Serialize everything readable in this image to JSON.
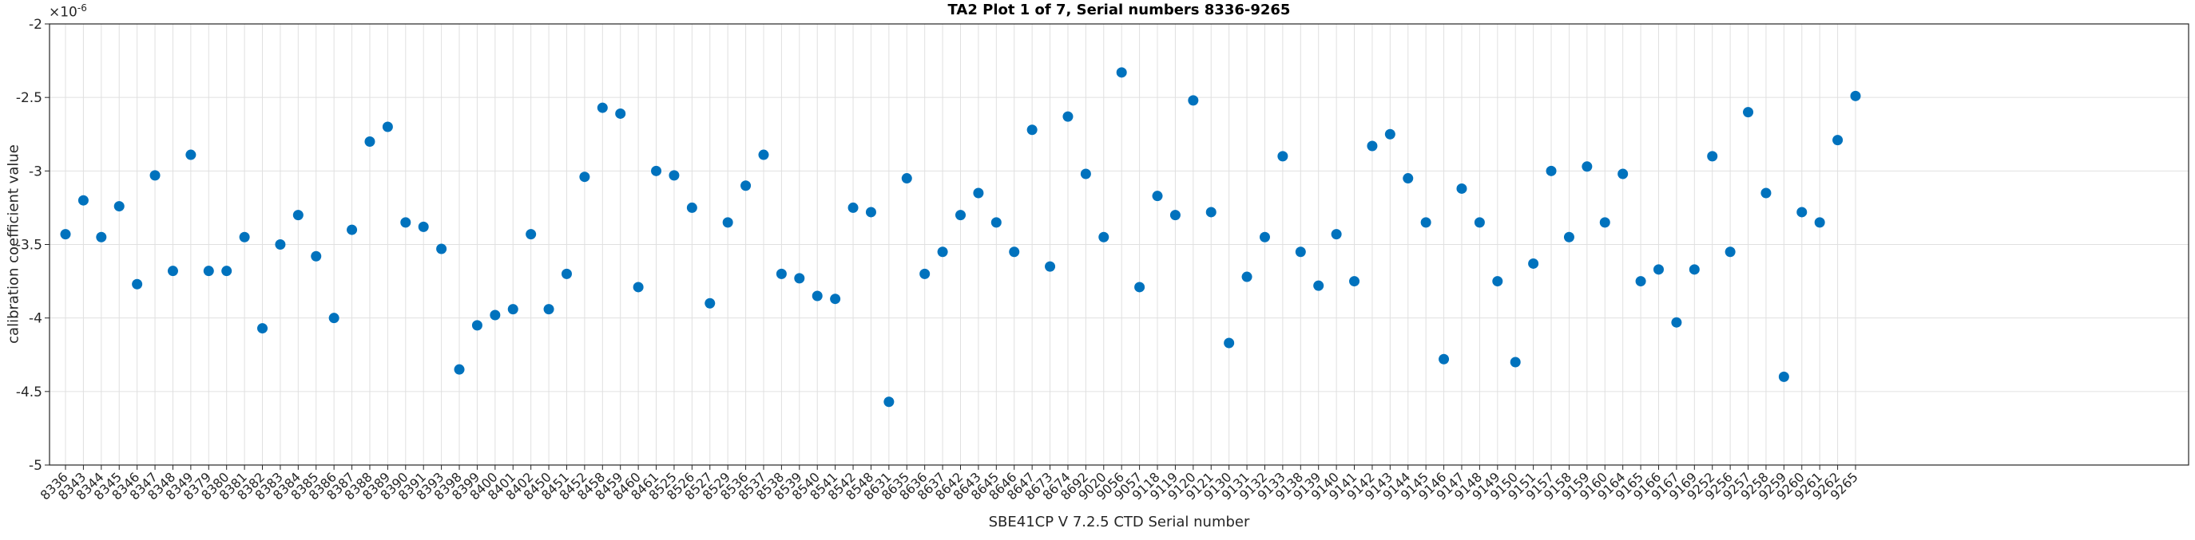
{
  "chart_data": {
    "type": "scatter",
    "title": "TA2 Plot 1 of 7, Serial numbers 8336-9265",
    "xlabel": "SBE41CP V 7.2.5 CTD Serial number",
    "ylabel": "calibration coefficient value",
    "y_exponent": {
      "prefix": "×10",
      "exp": "-6"
    },
    "ylim": [
      -5,
      -2
    ],
    "yticks": [
      -2,
      -2.5,
      -3,
      -3.5,
      -4,
      -4.5,
      -5
    ],
    "ytick_labels": [
      "-2",
      "-2.5",
      "-3",
      "-3.5",
      "-4",
      "-4.5",
      "-5"
    ],
    "grid": true,
    "legend": null,
    "marker_color": "#0072BD",
    "grid_color": "#e0e0e0",
    "axis_color": "#262626",
    "categories": [
      "8336",
      "8343",
      "8344",
      "8345",
      "8346",
      "8347",
      "8348",
      "8349",
      "8379",
      "8380",
      "8381",
      "8382",
      "8383",
      "8384",
      "8385",
      "8386",
      "8387",
      "8388",
      "8389",
      "8390",
      "8391",
      "8393",
      "8398",
      "8399",
      "8400",
      "8401",
      "8402",
      "8450",
      "8451",
      "8452",
      "8458",
      "8459",
      "8460",
      "8461",
      "8525",
      "8526",
      "8527",
      "8529",
      "8536",
      "8537",
      "8538",
      "8539",
      "8540",
      "8541",
      "8542",
      "8548",
      "8631",
      "8635",
      "8636",
      "8637",
      "8642",
      "8643",
      "8645",
      "8646",
      "8647",
      "8673",
      "8674",
      "8692",
      "9020",
      "9056",
      "9057",
      "9118",
      "9119",
      "9120",
      "9121",
      "9130",
      "9131",
      "9132",
      "9133",
      "9138",
      "9139",
      "9140",
      "9141",
      "9142",
      "9143",
      "9144",
      "9145",
      "9146",
      "9147",
      "9148",
      "9149",
      "9150",
      "9151",
      "9157",
      "9158",
      "9159",
      "9160",
      "9164",
      "9165",
      "9166",
      "9167",
      "9169",
      "9252",
      "9256",
      "9257",
      "9258",
      "9259",
      "9260",
      "9261",
      "9262",
      "9265"
    ],
    "values": [
      -3.43,
      -3.2,
      -3.45,
      -3.24,
      -3.77,
      -3.03,
      -3.68,
      -2.89,
      -3.68,
      -3.68,
      -3.45,
      -4.07,
      -3.5,
      -3.3,
      -3.58,
      -4.0,
      -3.4,
      -2.8,
      -2.7,
      -3.35,
      -3.38,
      -3.53,
      -4.35,
      -4.05,
      -3.98,
      -3.94,
      -3.43,
      -3.94,
      -3.7,
      -3.04,
      -2.57,
      -2.61,
      -3.79,
      -3.0,
      -3.03,
      -3.25,
      -3.9,
      -3.35,
      -3.1,
      -2.89,
      -3.7,
      -3.73,
      -3.85,
      -3.87,
      -3.25,
      -3.28,
      -4.57,
      -3.05,
      -3.7,
      -3.55,
      -3.3,
      -3.15,
      -3.35,
      -3.55,
      -2.72,
      -3.65,
      -2.63,
      -3.02,
      -3.45,
      -2.33,
      -3.79,
      -3.17,
      -3.3,
      -2.52,
      -3.28,
      -4.17,
      -3.72,
      -3.45,
      -2.9,
      -3.55,
      -3.78,
      -3.43,
      -3.75,
      -2.83,
      -2.75,
      -3.05,
      -3.35,
      -4.28,
      -3.12,
      -3.35,
      -3.75,
      -4.3,
      -3.63,
      -3.0,
      -3.45,
      -2.97,
      -3.35,
      -3.02,
      -3.75,
      -3.67,
      -4.03,
      -3.67,
      -2.9,
      -3.55,
      -2.6,
      -3.15,
      -4.4,
      -3.28,
      -3.35,
      -2.79,
      -2.49
    ]
  }
}
